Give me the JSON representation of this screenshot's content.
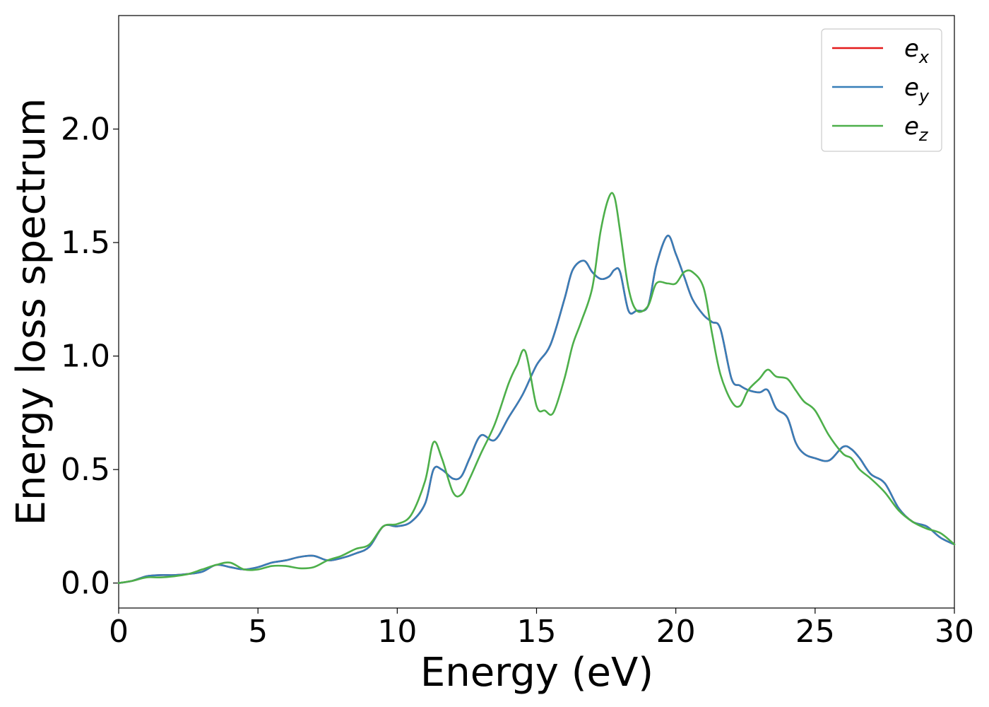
{
  "chart_data": {
    "type": "line",
    "title": "",
    "xlabel": "Energy (eV)",
    "ylabel": "Energy loss spectrum",
    "xlim": [
      0,
      30
    ],
    "ylim": [
      -0.11,
      2.5
    ],
    "xticks": [
      0,
      5,
      10,
      15,
      20,
      25,
      30
    ],
    "xtick_labels": [
      "0",
      "5",
      "10",
      "15",
      "20",
      "25",
      "30"
    ],
    "yticks": [
      0.0,
      0.5,
      1.0,
      1.5,
      2.0
    ],
    "ytick_labels": [
      "0.0",
      "0.5",
      "1.0",
      "1.5",
      "2.0"
    ],
    "grid": false,
    "legend_position": "top-right",
    "series": [
      {
        "name": "e_x",
        "legend_base": "e",
        "legend_sub": "x",
        "color": "#e41a1c",
        "x": [
          0,
          0.5,
          1,
          1.5,
          2,
          2.5,
          3,
          3.5,
          4,
          4.5,
          5,
          5.5,
          6,
          6.5,
          7,
          7.5,
          8,
          8.5,
          9,
          9.5,
          10,
          10.5,
          11,
          11.3,
          11.6,
          12,
          12.3,
          12.6,
          13,
          13.5,
          14,
          14.5,
          15,
          15.5,
          16,
          16.3,
          16.7,
          17,
          17.3,
          17.6,
          17.8,
          18,
          18.3,
          18.6,
          19,
          19.3,
          19.7,
          20,
          20.3,
          20.6,
          21,
          21.3,
          21.6,
          22,
          22.3,
          22.6,
          23,
          23.3,
          23.6,
          24,
          24.3,
          24.6,
          25,
          25.5,
          26,
          26.3,
          26.6,
          27,
          27.5,
          28,
          28.5,
          29,
          29.5,
          30
        ],
        "y": [
          0,
          0.01,
          0.03,
          0.035,
          0.035,
          0.04,
          0.05,
          0.08,
          0.07,
          0.06,
          0.07,
          0.09,
          0.1,
          0.115,
          0.12,
          0.1,
          0.11,
          0.13,
          0.16,
          0.25,
          0.25,
          0.27,
          0.35,
          0.5,
          0.5,
          0.46,
          0.47,
          0.55,
          0.65,
          0.63,
          0.73,
          0.83,
          0.96,
          1.05,
          1.25,
          1.38,
          1.42,
          1.37,
          1.34,
          1.35,
          1.38,
          1.37,
          1.2,
          1.2,
          1.22,
          1.4,
          1.53,
          1.45,
          1.35,
          1.25,
          1.18,
          1.15,
          1.12,
          0.9,
          0.87,
          0.85,
          0.84,
          0.85,
          0.77,
          0.73,
          0.62,
          0.57,
          0.55,
          0.54,
          0.6,
          0.59,
          0.55,
          0.48,
          0.44,
          0.33,
          0.27,
          0.25,
          0.2,
          0.17
        ]
      },
      {
        "name": "e_y",
        "legend_base": "e",
        "legend_sub": "y",
        "color": "#377eb8",
        "x": [
          0,
          0.5,
          1,
          1.5,
          2,
          2.5,
          3,
          3.5,
          4,
          4.5,
          5,
          5.5,
          6,
          6.5,
          7,
          7.5,
          8,
          8.5,
          9,
          9.5,
          10,
          10.5,
          11,
          11.3,
          11.6,
          12,
          12.3,
          12.6,
          13,
          13.5,
          14,
          14.5,
          15,
          15.5,
          16,
          16.3,
          16.7,
          17,
          17.3,
          17.6,
          17.8,
          18,
          18.3,
          18.6,
          19,
          19.3,
          19.7,
          20,
          20.3,
          20.6,
          21,
          21.3,
          21.6,
          22,
          22.3,
          22.6,
          23,
          23.3,
          23.6,
          24,
          24.3,
          24.6,
          25,
          25.5,
          26,
          26.3,
          26.6,
          27,
          27.5,
          28,
          28.5,
          29,
          29.5,
          30
        ],
        "y": [
          0,
          0.01,
          0.03,
          0.035,
          0.035,
          0.04,
          0.05,
          0.08,
          0.07,
          0.06,
          0.07,
          0.09,
          0.1,
          0.115,
          0.12,
          0.1,
          0.11,
          0.13,
          0.16,
          0.25,
          0.25,
          0.27,
          0.35,
          0.5,
          0.5,
          0.46,
          0.47,
          0.55,
          0.65,
          0.63,
          0.73,
          0.83,
          0.96,
          1.05,
          1.25,
          1.38,
          1.42,
          1.37,
          1.34,
          1.35,
          1.38,
          1.37,
          1.2,
          1.2,
          1.22,
          1.4,
          1.53,
          1.45,
          1.35,
          1.25,
          1.18,
          1.15,
          1.12,
          0.9,
          0.87,
          0.85,
          0.84,
          0.85,
          0.77,
          0.73,
          0.62,
          0.57,
          0.55,
          0.54,
          0.6,
          0.59,
          0.55,
          0.48,
          0.44,
          0.33,
          0.27,
          0.25,
          0.2,
          0.17
        ]
      },
      {
        "name": "e_z",
        "legend_base": "e",
        "legend_sub": "z",
        "color": "#4daf4a",
        "x": [
          0,
          0.5,
          1,
          1.5,
          2,
          2.5,
          3,
          3.5,
          4,
          4.5,
          5,
          5.5,
          6,
          6.5,
          7,
          7.5,
          8,
          8.5,
          9,
          9.5,
          10,
          10.5,
          11,
          11.3,
          11.6,
          12,
          12.3,
          12.6,
          13,
          13.5,
          14,
          14.3,
          14.6,
          15,
          15.3,
          15.6,
          16,
          16.3,
          16.6,
          17,
          17.3,
          17.6,
          17.8,
          18,
          18.3,
          18.6,
          19,
          19.3,
          19.7,
          20,
          20.3,
          20.6,
          21,
          21.3,
          21.6,
          22,
          22.3,
          22.6,
          23,
          23.3,
          23.6,
          24,
          24.3,
          24.6,
          25,
          25.5,
          26,
          26.3,
          26.6,
          27,
          27.5,
          28,
          28.5,
          29,
          29.5,
          30
        ],
        "y": [
          0,
          0.01,
          0.025,
          0.025,
          0.03,
          0.04,
          0.06,
          0.08,
          0.09,
          0.06,
          0.06,
          0.075,
          0.075,
          0.065,
          0.07,
          0.1,
          0.12,
          0.15,
          0.17,
          0.25,
          0.26,
          0.3,
          0.45,
          0.62,
          0.55,
          0.4,
          0.39,
          0.46,
          0.57,
          0.7,
          0.88,
          0.96,
          1.02,
          0.78,
          0.76,
          0.75,
          0.9,
          1.05,
          1.15,
          1.3,
          1.55,
          1.7,
          1.7,
          1.55,
          1.3,
          1.2,
          1.22,
          1.32,
          1.32,
          1.32,
          1.37,
          1.37,
          1.3,
          1.1,
          0.92,
          0.8,
          0.78,
          0.85,
          0.9,
          0.94,
          0.91,
          0.9,
          0.85,
          0.8,
          0.76,
          0.65,
          0.57,
          0.55,
          0.5,
          0.46,
          0.4,
          0.32,
          0.27,
          0.24,
          0.22,
          0.17
        ]
      }
    ]
  }
}
